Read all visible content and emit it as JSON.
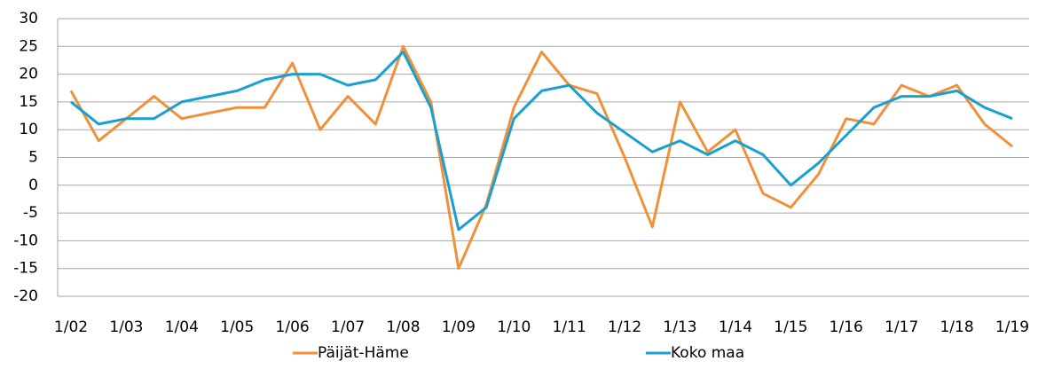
{
  "chart_data": {
    "type": "line",
    "categories": [
      "1/02",
      null,
      "1/03",
      null,
      "1/04",
      null,
      "1/05",
      null,
      "1/06",
      null,
      "1/07",
      null,
      "1/08",
      null,
      "1/09",
      null,
      "1/10",
      null,
      "1/11",
      null,
      "1/12",
      null,
      "1/13",
      null,
      "1/14",
      null,
      "1/15",
      null,
      "1/16",
      null,
      "1/17",
      null,
      "1/18",
      null,
      "1/19"
    ],
    "series": [
      {
        "name": "Päijät-Häme",
        "color": "#f0913a",
        "values": [
          17,
          8,
          12,
          16,
          12,
          13,
          14,
          14,
          22,
          10,
          16,
          11,
          25,
          15,
          -15,
          -3.5,
          14,
          24,
          18,
          16.5,
          5,
          -7.5,
          15,
          6,
          10,
          -1.5,
          -4,
          2,
          12,
          11,
          18,
          16,
          18,
          11,
          7
        ]
      },
      {
        "name": "Koko maa",
        "color": "#1aa0d0",
        "values": [
          15,
          11,
          12,
          12,
          15,
          16,
          17,
          19,
          20,
          20,
          18,
          19,
          24,
          14,
          -8,
          -4,
          12,
          17,
          18,
          13,
          9.5,
          6,
          8,
          5.5,
          8,
          5.5,
          0,
          4,
          9,
          14,
          16,
          16,
          17,
          14,
          12
        ]
      }
    ],
    "ylim": [
      -20,
      30
    ],
    "yticks": [
      -20,
      -15,
      -10,
      -5,
      0,
      5,
      10,
      15,
      20,
      25,
      30
    ],
    "grid": true,
    "legend": "bottom"
  }
}
